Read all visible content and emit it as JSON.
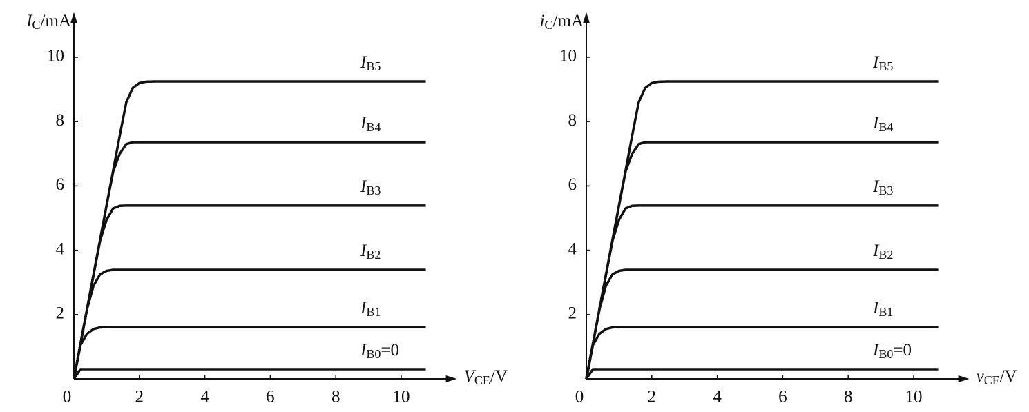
{
  "chart_data": [
    {
      "type": "line",
      "x_label": "VCE/V",
      "y_label": "IC/mA",
      "xlim": [
        0,
        11.7
      ],
      "ylim": [
        0,
        11.4
      ],
      "xticks": [
        0,
        2,
        4,
        6,
        8,
        10
      ],
      "yticks": [
        2,
        4,
        6,
        8,
        10
      ],
      "x": [
        0,
        0.2,
        0.4,
        0.6,
        0.8,
        1.0,
        1.2,
        1.4,
        1.6,
        1.8,
        2.0,
        2.2,
        2.5,
        10.75
      ],
      "series": [
        {
          "name": "IB0=0",
          "color": "#111111",
          "values": [
            0,
            0.3,
            0.3,
            0.3,
            0.3,
            0.3,
            0.3,
            0.3,
            0.3,
            0.3,
            0.3,
            0.3,
            0.3,
            0.3
          ]
        },
        {
          "name": "IB1",
          "color": "#111111",
          "values": [
            0,
            1.05,
            1.4,
            1.55,
            1.6,
            1.61,
            1.61,
            1.61,
            1.61,
            1.61,
            1.61,
            1.61,
            1.61,
            1.61
          ]
        },
        {
          "name": "IB2",
          "color": "#111111",
          "values": [
            0,
            1.08,
            2.16,
            2.9,
            3.25,
            3.36,
            3.39,
            3.39,
            3.39,
            3.39,
            3.39,
            3.39,
            3.39,
            3.39
          ]
        },
        {
          "name": "IB3",
          "color": "#111111",
          "values": [
            0,
            1.08,
            2.16,
            3.24,
            4.3,
            4.95,
            5.3,
            5.38,
            5.39,
            5.39,
            5.39,
            5.39,
            5.39,
            5.39
          ]
        },
        {
          "name": "IB4",
          "color": "#111111",
          "values": [
            0,
            1.08,
            2.16,
            3.24,
            4.32,
            5.4,
            6.45,
            7.0,
            7.3,
            7.36,
            7.36,
            7.36,
            7.36,
            7.36
          ]
        },
        {
          "name": "IB5",
          "color": "#111111",
          "values": [
            0,
            1.08,
            2.16,
            3.24,
            4.32,
            5.4,
            6.48,
            7.56,
            8.6,
            9.05,
            9.2,
            9.24,
            9.25,
            9.25
          ]
        }
      ]
    },
    {
      "type": "line",
      "x_label": "vCE/V",
      "y_label": "iC/mA",
      "xlim": [
        0,
        11.7
      ],
      "ylim": [
        0,
        11.4
      ],
      "xticks": [
        0,
        2,
        4,
        6,
        8,
        10
      ],
      "yticks": [
        2,
        4,
        6,
        8,
        10
      ],
      "x": [
        0,
        0.2,
        0.4,
        0.6,
        0.8,
        1.0,
        1.2,
        1.4,
        1.6,
        1.8,
        2.0,
        2.2,
        2.5,
        10.75
      ],
      "series": [
        {
          "name": "IB0=0",
          "color": "#111111",
          "values": [
            0,
            0.3,
            0.3,
            0.3,
            0.3,
            0.3,
            0.3,
            0.3,
            0.3,
            0.3,
            0.3,
            0.3,
            0.3,
            0.3
          ]
        },
        {
          "name": "IB1",
          "color": "#111111",
          "values": [
            0,
            1.05,
            1.4,
            1.55,
            1.6,
            1.61,
            1.61,
            1.61,
            1.61,
            1.61,
            1.61,
            1.61,
            1.61,
            1.61
          ]
        },
        {
          "name": "IB2",
          "color": "#111111",
          "values": [
            0,
            1.08,
            2.16,
            2.9,
            3.25,
            3.36,
            3.39,
            3.39,
            3.39,
            3.39,
            3.39,
            3.39,
            3.39,
            3.39
          ]
        },
        {
          "name": "IB3",
          "color": "#111111",
          "values": [
            0,
            1.08,
            2.16,
            3.24,
            4.3,
            4.95,
            5.3,
            5.38,
            5.39,
            5.39,
            5.39,
            5.39,
            5.39,
            5.39
          ]
        },
        {
          "name": "IB4",
          "color": "#111111",
          "values": [
            0,
            1.08,
            2.16,
            3.24,
            4.32,
            5.4,
            6.45,
            7.0,
            7.3,
            7.36,
            7.36,
            7.36,
            7.36,
            7.36
          ]
        },
        {
          "name": "IB5",
          "color": "#111111",
          "values": [
            0,
            1.08,
            2.16,
            3.24,
            4.32,
            5.4,
            6.48,
            7.56,
            8.6,
            9.05,
            9.2,
            9.24,
            9.25,
            9.25
          ]
        }
      ]
    }
  ]
}
